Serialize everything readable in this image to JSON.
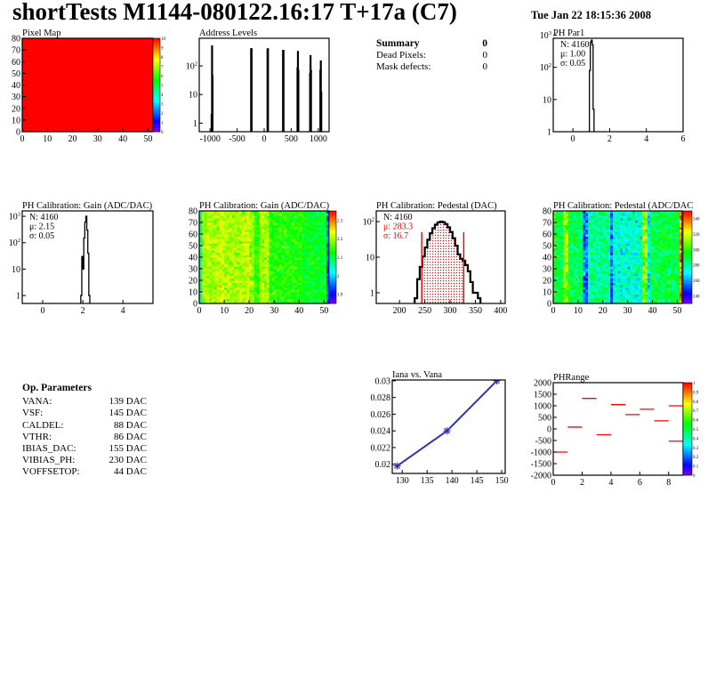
{
  "header": {
    "title": "shortTests M1144-080122.16:17 T+17a (C7)",
    "date": "Tue Jan 22 18:15:36 2008"
  },
  "summary": {
    "title": "Summary",
    "total": "0",
    "rows": [
      {
        "label": "Dead Pixels:",
        "value": "0"
      },
      {
        "label": "Mask defects:",
        "value": "0"
      }
    ]
  },
  "op_parameters": {
    "title": "Op. Parameters",
    "rows": [
      {
        "label": "VANA:",
        "value": "139 DAC"
      },
      {
        "label": "VSF:",
        "value": "145 DAC"
      },
      {
        "label": "CALDEL:",
        "value": "88 DAC"
      },
      {
        "label": "VTHR:",
        "value": "86 DAC"
      },
      {
        "label": "IBIAS_DAC:",
        "value": "155 DAC"
      },
      {
        "label": "VIBIAS_PH:",
        "value": "230 DAC"
      },
      {
        "label": "VOFFSETOP:",
        "value": "44 DAC"
      }
    ]
  },
  "chart_data": [
    {
      "id": "pixel_map",
      "type": "heatmap",
      "title": "Pixel Map",
      "xlim": [
        0,
        52
      ],
      "ylim": [
        0,
        80
      ],
      "zlim": [
        0,
        10
      ],
      "fill_value": 10,
      "xticks": [
        0,
        10,
        20,
        30,
        40,
        50
      ],
      "yticks": [
        0,
        10,
        20,
        30,
        40,
        50,
        60,
        70,
        80
      ],
      "zticks": [
        0,
        1,
        2,
        3,
        4,
        5,
        6,
        7,
        8,
        9,
        10
      ]
    },
    {
      "id": "address_levels",
      "type": "bar",
      "title": "Address Levels",
      "xlim": [
        -1200,
        1200
      ],
      "ylim": [
        0.5,
        930
      ],
      "ylog": true,
      "xticks": [
        -1000,
        -500,
        0,
        500,
        1000
      ],
      "yticks": [
        1,
        10,
        100
      ],
      "ytick_labels": [
        "1",
        "10",
        "10^2"
      ],
      "bin_width": 8,
      "bins": [
        [
          -975,
          2
        ],
        [
          -967,
          500
        ],
        [
          -959,
          45
        ],
        [
          -245,
          400
        ],
        [
          -237,
          400
        ],
        [
          58,
          380
        ],
        [
          66,
          400
        ],
        [
          345,
          350
        ],
        [
          353,
          350
        ],
        [
          612,
          85
        ],
        [
          620,
          320
        ],
        [
          628,
          70
        ],
        [
          845,
          55
        ],
        [
          853,
          230
        ],
        [
          861,
          70
        ],
        [
          1035,
          70
        ],
        [
          1043,
          150
        ],
        [
          1051,
          12
        ]
      ]
    },
    {
      "id": "ph_par1",
      "type": "bar",
      "title": "PH Par1",
      "xlim": [
        -1.07,
        6
      ],
      "ylim": [
        1,
        800
      ],
      "ylog": true,
      "xticks": [
        0,
        2,
        4,
        6
      ],
      "yticks": [
        1,
        10,
        100,
        1000
      ],
      "ytick_labels": [
        "1",
        "10",
        "10^2",
        "10^3"
      ],
      "bin_start": 0.85,
      "bin_width": 0.05,
      "values": [
        1,
        80,
        600,
        700,
        500,
        5
      ],
      "stats": {
        "N": "N: 4160",
        "mean": "μ: 1.00",
        "sigma": "σ: 0.05"
      }
    },
    {
      "id": "gain_hist",
      "type": "bar",
      "title": "PH Calibration: Gain (ADC/DAC)",
      "xlim": [
        -1.02,
        5.5
      ],
      "ylim": [
        0.5,
        1600
      ],
      "ylog": true,
      "xticks": [
        0,
        2,
        4
      ],
      "yticks": [
        1,
        10,
        100,
        1000
      ],
      "ytick_labels": [
        "1",
        "10",
        "10^2",
        "10^3"
      ],
      "bin_start": 1.9,
      "bin_width": 0.05,
      "values": [
        1,
        30,
        10,
        150,
        600,
        1000,
        300,
        40,
        1
      ],
      "stats": {
        "N": "N: 4160",
        "mean": "μ: 2.15",
        "sigma": "σ: 0.05"
      }
    },
    {
      "id": "gain_map",
      "type": "heatmap",
      "title": "PH Calibration: Gain (ADC/DAC)",
      "xlim": [
        0,
        52
      ],
      "ylim": [
        0,
        80
      ],
      "zlim": [
        1.85,
        2.35
      ],
      "xticks": [
        0,
        10,
        20,
        30,
        40,
        50
      ],
      "yticks": [
        0,
        10,
        20,
        30,
        40,
        50,
        60,
        70,
        80
      ],
      "zticks": [
        1.9,
        2,
        2.1,
        2.2,
        2.3
      ],
      "noise": 0.03,
      "column_means": [
        2.08,
        2.2,
        2.2,
        2.2,
        2.2,
        2.2,
        2.2,
        2.2,
        2.22,
        2.22,
        2.2,
        2.2,
        2.2,
        2.2,
        2.2,
        2.2,
        2.2,
        2.2,
        2.21,
        2.23,
        2.19,
        2.19,
        2.14,
        2.14,
        2.2,
        2.2,
        2.2,
        2.2,
        2.14,
        2.14,
        2.14,
        2.14,
        2.14,
        2.14,
        2.14,
        2.14,
        2.14,
        2.14,
        2.14,
        2.14,
        2.14,
        2.12,
        2.12,
        2.12,
        2.12,
        2.12,
        2.11,
        2.11,
        2.11,
        2.11,
        2.11,
        1.95
      ]
    },
    {
      "id": "pedestal_hist",
      "type": "bar",
      "title": "PH Calibration: Pedestal (DAC)",
      "xlim": [
        154,
        409
      ],
      "ylim": [
        0.5,
        200
      ],
      "ylog": true,
      "xticks": [
        200,
        250,
        300,
        350,
        400
      ],
      "yticks": [
        1,
        10,
        100
      ],
      "ytick_labels": [
        "1",
        "10",
        "10^2"
      ],
      "bin_start": 230,
      "bin_width": 5,
      "values": [
        0.7,
        2.4,
        5.3,
        10.4,
        18.8,
        31,
        47,
        65,
        82,
        95,
        100,
        96,
        85,
        69,
        51,
        34,
        21,
        12,
        9,
        8,
        6,
        4,
        2,
        1,
        1,
        0.7
      ],
      "cut_lines": [
        244,
        327
      ],
      "stats": {
        "N": "N: 4160",
        "mean": "μ: 283.3",
        "sigma": "σ: 16.7"
      }
    },
    {
      "id": "pedestal_map",
      "type": "heatmap",
      "title": "PH Calibration: Pedestal (ADC/DAC",
      "xlim": [
        0,
        52
      ],
      "ylim": [
        0,
        80
      ],
      "zlim": [
        230,
        350
      ],
      "xticks": [
        0,
        10,
        20,
        30,
        40,
        50
      ],
      "yticks": [
        0,
        10,
        20,
        30,
        40,
        50,
        60,
        70,
        80
      ],
      "zticks": [
        240,
        260,
        280,
        300,
        320,
        340
      ],
      "noise": 10,
      "column_means": [
        300,
        290,
        290,
        290,
        310,
        310,
        288,
        288,
        288,
        288,
        288,
        288,
        255,
        255,
        282,
        282,
        282,
        282,
        282,
        282,
        282,
        282,
        282,
        252,
        275,
        275,
        275,
        275,
        275,
        275,
        275,
        275,
        275,
        275,
        275,
        275,
        310,
        310,
        270,
        290,
        290,
        290,
        290,
        290,
        290,
        290,
        290,
        290,
        290,
        290,
        290,
        335
      ]
    },
    {
      "id": "iana_vs_vana",
      "type": "line",
      "title": "Iana vs. Vana",
      "x": [
        129,
        139,
        149
      ],
      "y": [
        0.0198,
        0.024,
        0.03
      ],
      "xlim": [
        128,
        150.7
      ],
      "ylim": [
        0.0189,
        0.0301
      ],
      "xticks": [
        130,
        135,
        140,
        145,
        150
      ],
      "yticks": [
        0.02,
        0.022,
        0.024,
        0.026,
        0.028,
        0.03
      ],
      "ytick_labels": [
        "0.02",
        "0.022",
        "0.024",
        "0.026",
        "0.028",
        "0.03"
      ],
      "color": "#3333aa"
    },
    {
      "id": "phrange",
      "type": "heatmap",
      "title": "PHRange",
      "xlim": [
        0,
        9
      ],
      "ylim": [
        -2000,
        2000
      ],
      "zlim": [
        0,
        1
      ],
      "xticks": [
        0,
        2,
        4,
        6,
        8
      ],
      "yticks": [
        2000,
        1500,
        1000,
        500,
        0,
        -500,
        -1000,
        -1500,
        -2000
      ],
      "zticks": [
        0,
        0.1,
        0.2,
        0.3,
        0.4,
        0.5,
        0.6,
        0.7,
        0.8,
        0.9,
        1
      ],
      "segments": [
        [
          0,
          1,
          -1000
        ],
        [
          1,
          2,
          80
        ],
        [
          2,
          3,
          1320
        ],
        [
          3,
          4,
          -250
        ],
        [
          4,
          5,
          1050
        ],
        [
          5,
          6,
          620
        ],
        [
          6,
          7,
          850
        ],
        [
          7,
          8,
          350
        ],
        [
          8,
          9,
          1000
        ],
        [
          8,
          9,
          -530
        ]
      ],
      "color": "#ff0000"
    }
  ]
}
